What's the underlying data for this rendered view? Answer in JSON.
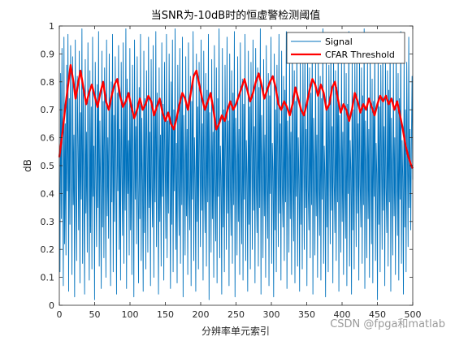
{
  "chart_data": {
    "type": "line",
    "title": "当SNR为-10dB时的恒虚警检测阈值",
    "xlabel": "分辨率单元索引",
    "ylabel": "dB",
    "xlim": [
      0,
      500
    ],
    "ylim": [
      0,
      1
    ],
    "xticks": [
      "0",
      "50",
      "100",
      "150",
      "200",
      "250",
      "300",
      "350",
      "400",
      "450",
      "500"
    ],
    "yticks": [
      "0",
      "0.1",
      "0.2",
      "0.3",
      "0.4",
      "0.5",
      "0.6",
      "0.7",
      "0.8",
      "0.9",
      "1"
    ],
    "legend_position": "top-right",
    "grid": false,
    "series": [
      {
        "name": "Signal",
        "color": "#0072BD",
        "y": [
          0.55,
          0.12,
          0.83,
          0.31,
          0.92,
          0.48,
          0.07,
          0.96,
          0.22,
          0.65,
          0.18,
          0.86,
          0.41,
          0.97,
          0.05,
          0.74,
          0.29,
          0.93,
          0.52,
          0.11,
          0.89,
          0.36,
          0.61,
          0.03,
          0.95,
          0.44,
          0.16,
          0.82,
          0.58,
          0.27,
          0.91,
          0.08,
          0.69,
          0.38,
          0.99,
          0.15,
          0.77,
          0.43,
          0.04,
          0.88,
          0.33,
          0.62,
          0.19,
          0.94,
          0.49,
          0.09,
          0.84,
          0.26,
          0.71,
          0.13,
          0.96,
          0.39,
          0.57,
          0.02,
          0.87,
          0.46,
          0.21,
          0.79,
          0.35,
          0.98,
          0.14,
          0.66,
          0.42,
          0.06,
          0.91,
          0.28,
          0.73,
          0.17,
          0.85,
          0.51,
          0.1,
          0.95,
          0.32,
          0.6,
          0.24,
          0.9,
          0.45,
          0.07,
          0.8,
          0.37,
          0.97,
          0.12,
          0.68,
          0.3,
          0.89,
          0.53,
          0.04,
          0.76,
          0.41,
          0.93,
          0.2,
          0.63,
          0.09,
          0.87,
          0.47,
          0.25,
          0.94,
          0.15,
          0.72,
          0.34,
          0.99,
          0.06,
          0.81,
          0.4,
          0.59,
          0.18,
          0.92,
          0.27,
          0.7,
          0.11,
          0.86,
          0.5,
          0.03,
          0.95,
          0.38,
          0.64,
          0.22,
          0.89,
          0.43,
          0.08,
          0.78,
          0.31,
          0.97,
          0.16,
          0.67,
          0.45,
          0.05,
          0.91,
          0.26,
          0.74,
          0.13,
          0.84,
          0.55,
          0.19,
          0.96,
          0.35,
          0.62,
          0.07,
          0.88,
          0.42,
          0.28,
          0.93,
          0.1,
          0.69,
          0.37,
          0.98,
          0.21,
          0.76,
          0.48,
          0.04,
          0.85,
          0.3,
          0.61,
          0.14,
          0.94,
          0.39,
          0.72,
          0.09,
          0.87,
          0.52,
          0.24,
          0.97,
          0.17,
          0.66,
          0.33,
          0.9,
          0.46,
          0.06,
          0.8,
          0.29,
          0.95,
          0.12,
          0.7,
          0.41,
          0.99,
          0.2,
          0.58,
          0.08,
          0.86,
          0.44,
          0.25,
          0.92,
          0.15,
          0.75,
          0.36,
          0.96,
          0.03,
          0.68,
          0.49,
          0.18,
          0.89,
          0.32,
          0.63,
          0.11,
          0.94,
          0.4,
          0.27,
          0.82,
          0.07,
          0.73,
          0.38,
          0.98,
          0.16,
          0.6,
          0.47,
          0.05,
          0.9,
          0.3,
          0.71,
          0.13,
          0.87,
          0.54,
          0.21,
          0.95,
          0.34,
          0.65,
          0.09,
          0.91,
          0.43,
          0.26,
          0.83,
          0.14,
          0.77,
          0.37,
          0.97,
          0.02,
          0.69,
          0.5,
          0.19,
          0.88,
          0.31,
          0.62,
          0.1,
          0.93,
          0.45,
          0.23,
          0.85,
          0.08,
          0.74,
          0.39,
          0.99,
          0.17,
          0.57,
          0.46,
          0.04,
          0.92,
          0.28,
          0.7,
          0.12,
          0.86,
          0.53,
          0.2,
          0.96,
          0.33,
          0.66,
          0.07,
          0.9,
          0.42,
          0.25,
          0.84,
          0.15,
          0.76,
          0.36,
          0.98,
          0.03,
          0.67,
          0.49,
          0.18,
          0.89,
          0.3,
          0.63,
          0.11,
          0.94,
          0.41,
          0.22,
          0.81,
          0.09,
          0.72,
          0.38,
          0.97,
          0.16,
          0.59,
          0.47,
          0.05,
          0.91,
          0.29,
          0.71,
          0.13,
          0.87,
          0.55,
          0.2,
          0.95,
          0.34,
          0.64,
          0.08,
          0.92,
          0.43,
          0.26,
          0.85,
          0.14,
          0.78,
          0.35,
          0.99,
          0.04,
          0.68,
          0.5,
          0.17,
          0.88,
          0.32,
          0.61,
          0.1,
          0.93,
          0.44,
          0.24,
          0.83,
          0.07,
          0.75,
          0.4,
          0.96,
          0.15,
          0.58,
          0.48,
          0.03,
          0.9,
          0.27,
          0.7,
          0.12,
          0.86,
          0.52,
          0.21,
          0.97,
          0.33,
          0.65,
          0.09,
          0.91,
          0.42,
          0.28,
          0.82,
          0.16,
          0.77,
          0.37,
          0.98,
          0.06,
          0.66,
          0.51,
          0.19,
          0.89,
          0.31,
          0.62,
          0.11,
          0.94,
          0.45,
          0.23,
          0.84,
          0.08,
          0.73,
          0.39,
          0.95,
          0.14,
          0.6,
          0.46,
          0.05,
          0.92,
          0.29,
          0.69,
          0.13,
          0.87,
          0.54,
          0.2,
          0.96,
          0.35,
          0.63,
          0.07,
          0.9,
          0.41,
          0.27,
          0.85,
          0.17,
          0.76,
          0.36,
          0.97,
          0.04,
          0.67,
          0.49,
          0.18,
          0.88,
          0.32,
          0.61,
          0.1,
          0.93,
          0.43,
          0.25,
          0.82,
          0.09,
          0.74,
          0.38,
          0.99,
          0.15,
          0.57,
          0.47,
          0.03,
          0.91,
          0.28,
          0.71,
          0.12,
          0.86,
          0.53,
          0.22,
          0.95,
          0.34,
          0.64,
          0.08,
          0.92,
          0.44,
          0.26,
          0.84,
          0.16,
          0.78,
          0.37,
          0.96,
          0.05,
          0.68,
          0.5,
          0.19,
          0.89,
          0.3,
          0.62,
          0.11,
          0.94,
          0.42,
          0.24,
          0.83,
          0.07,
          0.72,
          0.4,
          0.98,
          0.14,
          0.59,
          0.48,
          0.04,
          0.9,
          0.27,
          0.7,
          0.13,
          0.87,
          0.55,
          0.21,
          0.97,
          0.33,
          0.65,
          0.09,
          0.91,
          0.43,
          0.28,
          0.85,
          0.15,
          0.75,
          0.36,
          0.99,
          0.06,
          0.66,
          0.5,
          0.17,
          0.88,
          0.31,
          0.63,
          0.1,
          0.93,
          0.46,
          0.22,
          0.81,
          0.08,
          0.73,
          0.39,
          0.96,
          0.16,
          0.58,
          0.47,
          0.02,
          0.92,
          0.29,
          0.71,
          0.12,
          0.86,
          0.52,
          0.2,
          0.95,
          0.34,
          0.64,
          0.07,
          0.9,
          0.42,
          0.26,
          0.84,
          0.14,
          0.77,
          0.37,
          0.97,
          0.05,
          0.67,
          0.49,
          0.18,
          0.89,
          0.32,
          0.6,
          0.11,
          0.94,
          0.44,
          0.25,
          0.83,
          0.09,
          0.74,
          0.38,
          0.98,
          0.15,
          0.59,
          0.46,
          0.04,
          0.91,
          0.28,
          0.7,
          0.12,
          0.87,
          0.54,
          0.21,
          0.96,
          0.35,
          0.63,
          0.27,
          0.58,
          0.82,
          0.45
        ]
      },
      {
        "name": "CFAR Threshold",
        "color": "#FF0000",
        "points": [
          [
            0,
            0.53
          ],
          [
            5,
            0.63
          ],
          [
            8,
            0.7
          ],
          [
            12,
            0.78
          ],
          [
            16,
            0.86
          ],
          [
            20,
            0.8
          ],
          [
            23,
            0.74
          ],
          [
            27,
            0.8
          ],
          [
            30,
            0.84
          ],
          [
            34,
            0.78
          ],
          [
            38,
            0.72
          ],
          [
            42,
            0.76
          ],
          [
            46,
            0.79
          ],
          [
            50,
            0.75
          ],
          [
            54,
            0.71
          ],
          [
            58,
            0.76
          ],
          [
            62,
            0.8
          ],
          [
            66,
            0.73
          ],
          [
            70,
            0.7
          ],
          [
            74,
            0.75
          ],
          [
            78,
            0.79
          ],
          [
            82,
            0.81
          ],
          [
            86,
            0.75
          ],
          [
            90,
            0.71
          ],
          [
            94,
            0.73
          ],
          [
            98,
            0.76
          ],
          [
            102,
            0.71
          ],
          [
            106,
            0.67
          ],
          [
            110,
            0.7
          ],
          [
            114,
            0.74
          ],
          [
            118,
            0.7
          ],
          [
            122,
            0.72
          ],
          [
            126,
            0.75
          ],
          [
            130,
            0.73
          ],
          [
            134,
            0.68
          ],
          [
            138,
            0.71
          ],
          [
            142,
            0.74
          ],
          [
            146,
            0.69
          ],
          [
            150,
            0.66
          ],
          [
            154,
            0.69
          ],
          [
            158,
            0.65
          ],
          [
            162,
            0.63
          ],
          [
            166,
            0.67
          ],
          [
            170,
            0.72
          ],
          [
            174,
            0.76
          ],
          [
            178,
            0.74
          ],
          [
            182,
            0.7
          ],
          [
            186,
            0.76
          ],
          [
            190,
            0.82
          ],
          [
            194,
            0.84
          ],
          [
            198,
            0.79
          ],
          [
            202,
            0.74
          ],
          [
            206,
            0.7
          ],
          [
            210,
            0.73
          ],
          [
            214,
            0.76
          ],
          [
            218,
            0.7
          ],
          [
            222,
            0.63
          ],
          [
            226,
            0.65
          ],
          [
            230,
            0.68
          ],
          [
            234,
            0.66
          ],
          [
            238,
            0.7
          ],
          [
            242,
            0.73
          ],
          [
            246,
            0.7
          ],
          [
            250,
            0.72
          ],
          [
            254,
            0.75
          ],
          [
            258,
            0.78
          ],
          [
            262,
            0.81
          ],
          [
            266,
            0.77
          ],
          [
            270,
            0.73
          ],
          [
            274,
            0.76
          ],
          [
            278,
            0.8
          ],
          [
            282,
            0.83
          ],
          [
            286,
            0.79
          ],
          [
            290,
            0.74
          ],
          [
            294,
            0.77
          ],
          [
            298,
            0.8
          ],
          [
            302,
            0.82
          ],
          [
            306,
            0.78
          ],
          [
            310,
            0.72
          ],
          [
            314,
            0.7
          ],
          [
            318,
            0.73
          ],
          [
            322,
            0.71
          ],
          [
            326,
            0.68
          ],
          [
            330,
            0.72
          ],
          [
            334,
            0.78
          ],
          [
            338,
            0.74
          ],
          [
            342,
            0.7
          ],
          [
            346,
            0.68
          ],
          [
            350,
            0.72
          ],
          [
            354,
            0.77
          ],
          [
            358,
            0.81
          ],
          [
            362,
            0.79
          ],
          [
            366,
            0.75
          ],
          [
            370,
            0.79
          ],
          [
            374,
            0.76
          ],
          [
            378,
            0.7
          ],
          [
            382,
            0.72
          ],
          [
            386,
            0.78
          ],
          [
            390,
            0.8
          ],
          [
            394,
            0.74
          ],
          [
            398,
            0.69
          ],
          [
            402,
            0.72
          ],
          [
            406,
            0.7
          ],
          [
            410,
            0.66
          ],
          [
            414,
            0.7
          ],
          [
            418,
            0.76
          ],
          [
            422,
            0.73
          ],
          [
            426,
            0.69
          ],
          [
            430,
            0.72
          ],
          [
            434,
            0.7
          ],
          [
            438,
            0.74
          ],
          [
            442,
            0.71
          ],
          [
            446,
            0.68
          ],
          [
            450,
            0.72
          ],
          [
            454,
            0.75
          ],
          [
            458,
            0.73
          ],
          [
            462,
            0.75
          ],
          [
            466,
            0.72
          ],
          [
            470,
            0.74
          ],
          [
            474,
            0.7
          ],
          [
            478,
            0.73
          ],
          [
            482,
            0.68
          ],
          [
            486,
            0.63
          ],
          [
            490,
            0.57
          ],
          [
            494,
            0.53
          ],
          [
            498,
            0.5
          ],
          [
            500,
            0.49
          ]
        ]
      }
    ]
  },
  "watermark": "CSDN @fpga和matlab"
}
